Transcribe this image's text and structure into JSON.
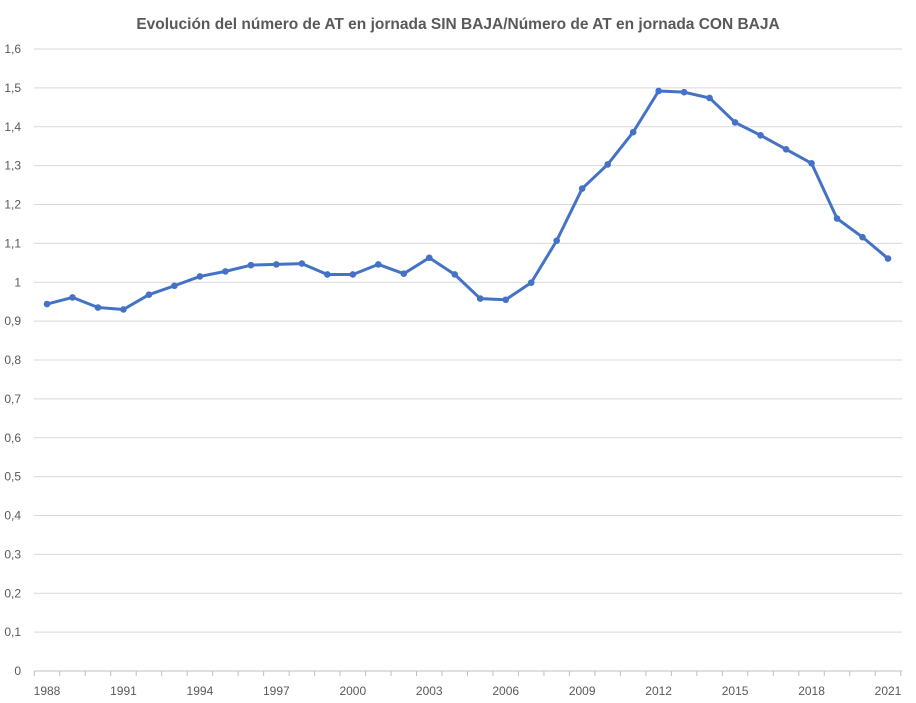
{
  "chart_data": {
    "type": "line",
    "title": "Evolución del número de AT en jornada SIN BAJA/Número de AT en jornada CON BAJA",
    "xlabel": "",
    "ylabel": "",
    "ylim": [
      0,
      1.6
    ],
    "y_ticks": [
      "0",
      "0,1",
      "0,2",
      "0,3",
      "0,4",
      "0,5",
      "0,6",
      "0,7",
      "0,8",
      "0,9",
      "1",
      "1,1",
      "1,2",
      "1,3",
      "1,4",
      "1,5",
      "1,6"
    ],
    "x_tick_labels": [
      "1988",
      "1991",
      "1994",
      "1997",
      "2000",
      "2003",
      "2006",
      "2009",
      "2012",
      "2015",
      "2018",
      "2021"
    ],
    "grid": true,
    "legend": "none",
    "line_color": "#4472c4",
    "x": [
      1988,
      1989,
      1990,
      1991,
      1992,
      1993,
      1994,
      1995,
      1996,
      1997,
      1998,
      1999,
      2000,
      2001,
      2002,
      2003,
      2004,
      2005,
      2006,
      2007,
      2008,
      2009,
      2010,
      2011,
      2012,
      2013,
      2014,
      2015,
      2016,
      2017,
      2018,
      2019,
      2020,
      2021
    ],
    "series": [
      {
        "values": [
          0.944,
          0.961,
          0.935,
          0.93,
          0.968,
          0.991,
          1.015,
          1.028,
          1.044,
          1.046,
          1.048,
          1.02,
          1.02,
          1.046,
          1.022,
          1.063,
          1.02,
          0.958,
          0.955,
          0.999,
          1.107,
          1.241,
          1.303,
          1.386,
          1.492,
          1.489,
          1.474,
          1.411,
          1.378,
          1.342,
          1.306,
          1.164,
          1.116,
          1.061
        ]
      }
    ]
  }
}
